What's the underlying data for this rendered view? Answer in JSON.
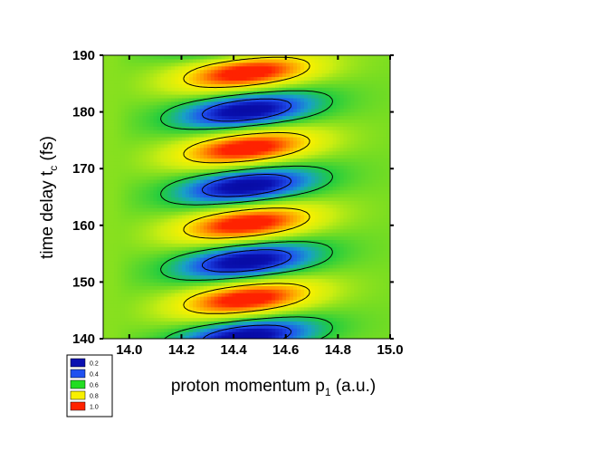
{
  "chart_data": {
    "type": "heatmap",
    "title": "",
    "xlabel": "proton momentum p",
    "xlabel_sub": "1",
    "xlabel_unit": " (a.u.)",
    "ylabel": "time delay t",
    "ylabel_sub": "c",
    "ylabel_unit": " (fs)",
    "xlim": [
      13.9,
      15.0
    ],
    "ylim": [
      140,
      190
    ],
    "xticks": [
      {
        "value": 14.0,
        "label": "14.0"
      },
      {
        "value": 14.2,
        "label": "14.2"
      },
      {
        "value": 14.4,
        "label": "14.4"
      },
      {
        "value": 14.6,
        "label": "14.6"
      },
      {
        "value": 14.8,
        "label": "14.8"
      },
      {
        "value": 15.0,
        "label": "15.0"
      }
    ],
    "yticks": [
      {
        "value": 140,
        "label": "140"
      },
      {
        "value": 150,
        "label": "150"
      },
      {
        "value": 160,
        "label": "160"
      },
      {
        "value": 170,
        "label": "170"
      },
      {
        "value": 180,
        "label": "180"
      },
      {
        "value": 190,
        "label": "190"
      }
    ],
    "legend": {
      "placement": "bottom-left",
      "entries": [
        {
          "label": "0.2",
          "color": "#0a10b0"
        },
        {
          "label": "0.4",
          "color": "#2050f0"
        },
        {
          "label": "0.6",
          "color": "#22dd22"
        },
        {
          "label": "0.8",
          "color": "#f8f000"
        },
        {
          "label": "1.0",
          "color": "#ff2200"
        }
      ]
    },
    "color_scale": [
      {
        "v": 0.0,
        "color": "#000088"
      },
      {
        "v": 0.2,
        "color": "#0a10b0"
      },
      {
        "v": 0.3,
        "color": "#2050f0"
      },
      {
        "v": 0.4,
        "color": "#18a0c8"
      },
      {
        "v": 0.5,
        "color": "#20cc40"
      },
      {
        "v": 0.6,
        "color": "#77dd22"
      },
      {
        "v": 0.7,
        "color": "#ccee11"
      },
      {
        "v": 0.8,
        "color": "#f8f000"
      },
      {
        "v": 0.9,
        "color": "#ff9900"
      },
      {
        "v": 1.0,
        "color": "#ff2200"
      }
    ],
    "contour_levels": [
      0.3,
      0.5,
      0.8
    ],
    "oscillation_period_fs": 13.3,
    "min_bands": [
      {
        "t_center": 140.5,
        "p_center": 14.38
      },
      {
        "t_center": 153.5,
        "p_center": 14.4
      },
      {
        "t_center": 166.5,
        "p_center": 14.42
      },
      {
        "t_center": 179.5,
        "p_center": 14.44
      },
      {
        "t_center": 190.5,
        "p_center": 14.46
      }
    ],
    "max_bands": [
      {
        "t_center": 147.0,
        "p_center": 14.55
      },
      {
        "t_center": 160.0,
        "p_center": 14.55
      },
      {
        "t_center": 173.0,
        "p_center": 14.55
      },
      {
        "t_center": 186.0,
        "p_center": 14.55
      }
    ],
    "grid": false
  }
}
